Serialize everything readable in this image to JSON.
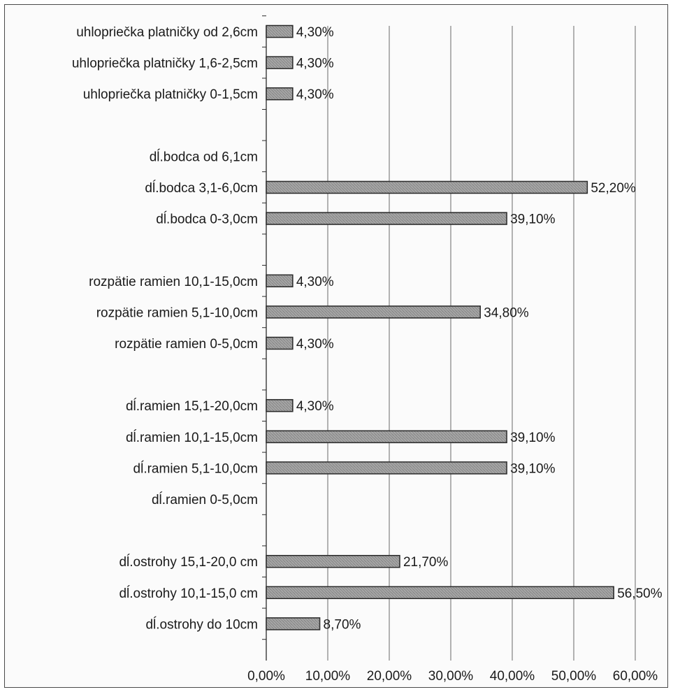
{
  "chart_data": {
    "type": "bar",
    "orientation": "horizontal",
    "categories": [
      "uhlopriečka platničky od 2,6cm",
      "uhlopriečka platničky 1,6-2,5cm",
      "uhlopriečka platničky 0-1,5cm",
      "",
      "dĺ.bodca od 6,1cm",
      "dĺ.bodca 3,1-6,0cm",
      "dĺ.bodca 0-3,0cm",
      "",
      "rozpätie ramien 10,1-15,0cm",
      "rozpätie ramien 5,1-10,0cm",
      "rozpätie ramien 0-5,0cm",
      "",
      "dĺ.ramien 15,1-20,0cm",
      "dĺ.ramien 10,1-15,0cm",
      "dĺ.ramien 5,1-10,0cm",
      "dĺ.ramien 0-5,0cm",
      "",
      "dĺ.ostrohy 15,1-20,0 cm",
      "dĺ.ostrohy 10,1-15,0 cm",
      "dĺ.ostrohy do 10cm"
    ],
    "values": [
      4.3,
      4.3,
      4.3,
      null,
      null,
      52.2,
      39.1,
      null,
      4.3,
      34.8,
      4.3,
      null,
      4.3,
      39.1,
      39.1,
      null,
      null,
      21.7,
      56.5,
      8.7
    ],
    "value_labels": [
      "4,30%",
      "4,30%",
      "4,30%",
      "",
      "",
      "52,20%",
      "39,10%",
      "",
      "4,30%",
      "34,80%",
      "4,30%",
      "",
      "4,30%",
      "39,10%",
      "39,10%",
      "",
      "",
      "21,70%",
      "56,50%",
      "8,70%"
    ],
    "x_ticks": [
      "0,00%",
      "10,00%",
      "20,00%",
      "30,00%",
      "40,00%",
      "50,00%",
      "60,00%"
    ],
    "xlim": [
      0,
      60
    ],
    "grid": "vertical",
    "bar_color": "#9a9a9a",
    "bar_stroke": "#2a2a2a",
    "title": "",
    "xlabel": "",
    "ylabel": ""
  }
}
